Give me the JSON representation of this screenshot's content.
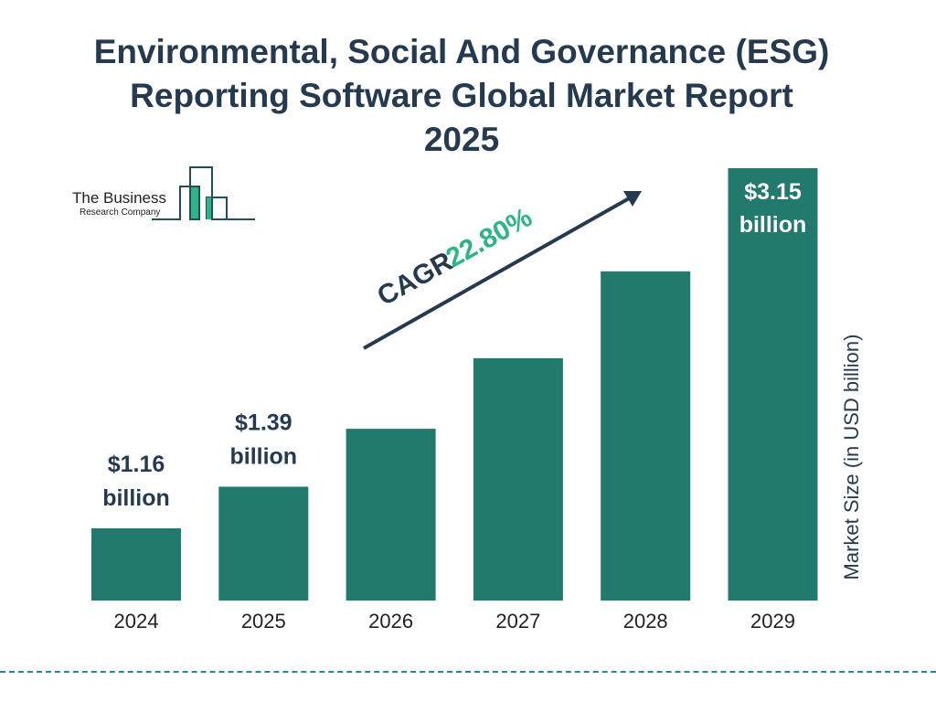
{
  "title": [
    "Environmental, Social And Governance (ESG)",
    "Reporting Software Global Market Report",
    "2025"
  ],
  "logo": {
    "line1": "The Business",
    "line2": "Research Company"
  },
  "chart_data": {
    "type": "bar",
    "title": "Environmental, Social And Governance (ESG) Reporting Software Global Market Report 2025",
    "categories": [
      "2024",
      "2025",
      "2026",
      "2027",
      "2028",
      "2029"
    ],
    "values": [
      1.16,
      1.39,
      1.71,
      2.1,
      2.58,
      3.15
    ],
    "data_labels": [
      {
        "index": 0,
        "value": "$1.16",
        "unit": "billion"
      },
      {
        "index": 1,
        "value": "$1.39",
        "unit": "billion"
      },
      {
        "index": 5,
        "value": "$3.15",
        "unit": "billion"
      }
    ],
    "ylabel": "Market Size (in USD billion)",
    "xlabel": "",
    "annotation": {
      "label": "CAGR",
      "value": "22.80%"
    },
    "grid": false,
    "colors": {
      "bar": "#217a6b",
      "text": "#263a4f",
      "cagr": "#2db585",
      "dash": "#2a8a86"
    }
  }
}
